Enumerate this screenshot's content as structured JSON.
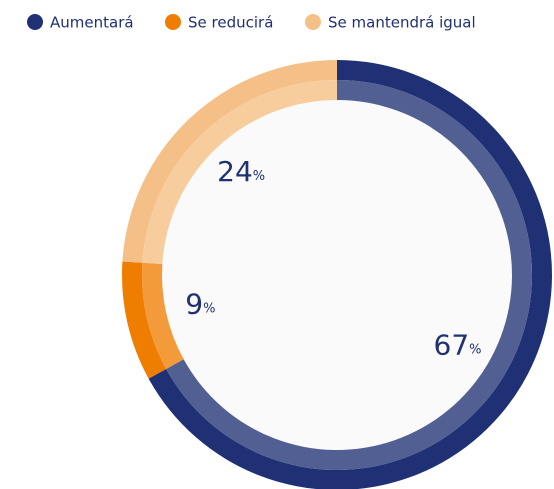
{
  "chart_data": {
    "type": "donut",
    "categories": [
      "Aumentará",
      "Se reducirá",
      "Se mantendrá igual"
    ],
    "values": [
      67,
      9,
      24
    ],
    "value_unit": "%",
    "colors": [
      "#1f3075",
      "#ef7d00",
      "#f5c088"
    ],
    "inner_colors": [
      "#525f93",
      "#f39a3b",
      "#f7cd9e"
    ],
    "legend": "top-left"
  }
}
